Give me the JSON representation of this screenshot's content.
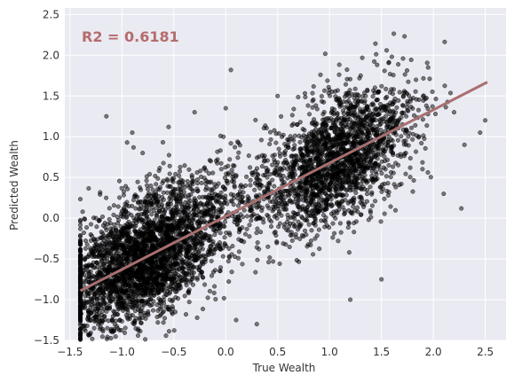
{
  "chart_data": {
    "type": "scatter",
    "xlabel": "True Wealth",
    "ylabel": "Predicted Wealth",
    "xlim": [
      -1.55,
      2.7
    ],
    "ylim": [
      -1.5,
      2.58
    ],
    "xticks": [
      -1.5,
      -1.0,
      -0.5,
      0.0,
      0.5,
      1.0,
      1.5,
      2.0,
      2.5
    ],
    "xtick_labels": [
      "−1.5",
      "−1.0",
      "−0.5",
      "0.0",
      "0.5",
      "1.0",
      "1.5",
      "2.0",
      "2.5"
    ],
    "yticks": [
      -1.5,
      -1.0,
      -0.5,
      0.0,
      0.5,
      1.0,
      1.5,
      2.0,
      2.5
    ],
    "ytick_labels": [
      "−1.5",
      "−1.0",
      "−0.5",
      "0.0",
      "0.5",
      "1.0",
      "1.5",
      "2.0",
      "2.5"
    ],
    "grid": true,
    "annotation": "R2 = 0.6181",
    "r2": 0.6181,
    "regression_line": {
      "x": [
        -1.4,
        2.52
      ],
      "y": [
        -0.89,
        1.67
      ]
    },
    "point_cloud": {
      "description_points": [
        [
          -1.37,
          -1.32
        ],
        [
          -1.2,
          -1.1
        ],
        [
          -1.3,
          -0.2
        ],
        [
          -0.95,
          0.93
        ],
        [
          -0.9,
          1.05
        ],
        [
          -0.8,
          0.8
        ],
        [
          -0.55,
          1.12
        ],
        [
          -0.3,
          1.3
        ],
        [
          0.0,
          1.35
        ],
        [
          0.05,
          1.82
        ],
        [
          0.5,
          1.5
        ],
        [
          1.3,
          1.75
        ],
        [
          1.55,
          2.06
        ],
        [
          1.6,
          1.98
        ],
        [
          1.95,
          1.85
        ],
        [
          2.27,
          0.12
        ],
        [
          2.5,
          1.2
        ],
        [
          2.1,
          0.3
        ],
        [
          1.5,
          -0.75
        ],
        [
          1.2,
          -1.0
        ],
        [
          0.3,
          -1.3
        ],
        [
          0.1,
          -1.25
        ],
        [
          -0.6,
          -1.28
        ],
        [
          -1.15,
          1.25
        ],
        [
          -1.1,
          -1.38
        ],
        [
          -1.25,
          0.0
        ],
        [
          -1.0,
          -1.05
        ],
        [
          2.2,
          1.3
        ],
        [
          2.3,
          0.9
        ],
        [
          2.45,
          1.05
        ]
      ],
      "color": "#000000"
    },
    "colors": {
      "plot_bg": "#eaeaf2",
      "grid": "#ffffff",
      "point": "#000000",
      "line": "#a86f70",
      "annotation": "#b56c6c"
    }
  }
}
